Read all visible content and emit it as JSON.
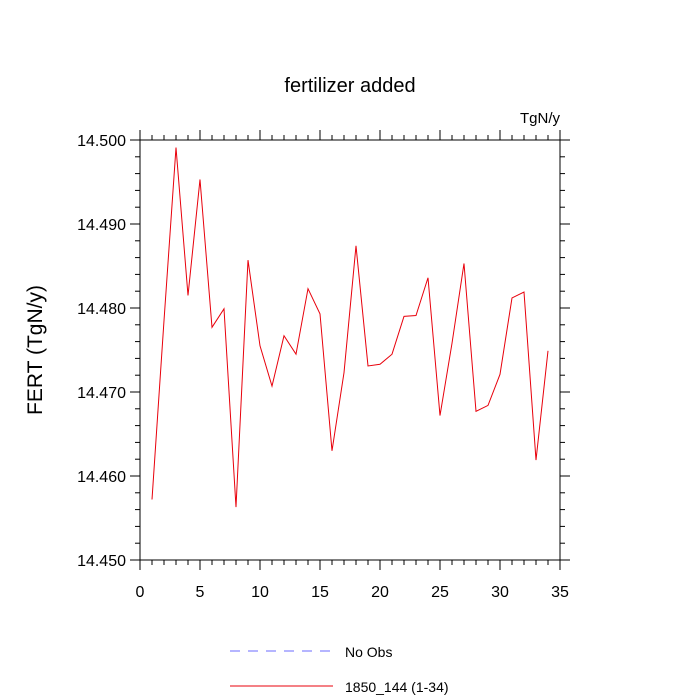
{
  "chart_data": {
    "type": "line",
    "title": "fertilizer added",
    "units": "TgN/y",
    "ylabel": "FERT  (TgN/y)",
    "xlabel": "",
    "xlim": [
      0,
      35
    ],
    "ylim": [
      14.45,
      14.5
    ],
    "xticks": [
      0,
      5,
      10,
      15,
      20,
      25,
      30,
      35
    ],
    "yticks": [
      14.45,
      14.46,
      14.47,
      14.48,
      14.49,
      14.5
    ],
    "ytick_labels": [
      "14.450",
      "14.460",
      "14.470",
      "14.480",
      "14.490",
      "14.500"
    ],
    "grid": false,
    "legend_position": "bottom",
    "legend": [
      {
        "label": "No Obs",
        "color": "#6b6bff",
        "style": "dashed"
      },
      {
        "label": "1850_144 (1-34)",
        "color": "#e8000b",
        "style": "solid"
      }
    ],
    "series": [
      {
        "name": "1850_144 (1-34)",
        "color": "#e8000b",
        "x": [
          1,
          2,
          3,
          4,
          5,
          6,
          7,
          8,
          9,
          10,
          11,
          12,
          13,
          14,
          15,
          16,
          17,
          18,
          19,
          20,
          21,
          22,
          23,
          24,
          25,
          26,
          27,
          28,
          29,
          30,
          31,
          32,
          33,
          34
        ],
        "values": [
          14.4572,
          14.4785,
          14.4991,
          14.4815,
          14.4953,
          14.4777,
          14.4799,
          14.4563,
          14.4857,
          14.4755,
          14.4707,
          14.4767,
          14.4745,
          14.4823,
          14.4793,
          14.463,
          14.4723,
          14.4874,
          14.4731,
          14.4733,
          14.4745,
          14.479,
          14.4791,
          14.4836,
          14.4672,
          14.4758,
          14.4853,
          14.4677,
          14.4684,
          14.4721,
          14.4812,
          14.4819,
          14.4619,
          14.4749
        ]
      }
    ]
  }
}
